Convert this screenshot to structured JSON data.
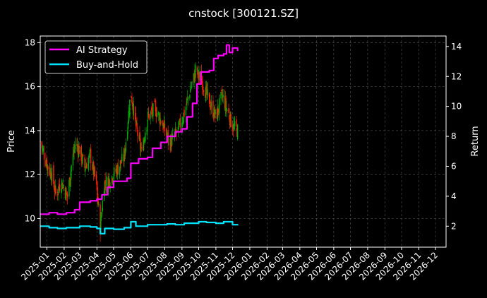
{
  "chart_data": {
    "type": "line",
    "title": "cnstock [300121.SZ]",
    "ylabel_left": "Price",
    "ylabel_right": "Return",
    "x_ticks": [
      "2025-01",
      "2025-02",
      "2025-03",
      "2025-04",
      "2025-05",
      "2025-06",
      "2025-07",
      "2025-08",
      "2025-09",
      "2025-10",
      "2025-11",
      "2025-12",
      "2026-01",
      "2026-02",
      "2026-03",
      "2026-04",
      "2026-05",
      "2026-06",
      "2026-07",
      "2026-08",
      "2026-09",
      "2026-10",
      "2026-11",
      "2026-12"
    ],
    "x_range": [
      "2024-12-20",
      "2026-12-20"
    ],
    "ylim_left": [
      8.7,
      18.3
    ],
    "ylim_right": [
      0.6,
      14.7
    ],
    "yticks_left": [
      "10",
      "12",
      "14",
      "16",
      "18"
    ],
    "yticks_right": [
      "2",
      "4",
      "6",
      "8",
      "10",
      "12",
      "14"
    ],
    "grid": true,
    "legend_position": "top-left",
    "colors": {
      "up": "#00aa00",
      "down": "#ff2200",
      "strategy": "#ff00ff",
      "buyhold": "#00e5ff",
      "background": "#000000",
      "grid": "#555555"
    },
    "price_path": [
      [
        "2024-12-20",
        13.5
      ],
      [
        "2025-01-02",
        12.4
      ],
      [
        "2025-01-10",
        12.0
      ],
      [
        "2025-01-17",
        11.1
      ],
      [
        "2025-01-27",
        11.7
      ],
      [
        "2025-02-07",
        11.0
      ],
      [
        "2025-02-14",
        12.4
      ],
      [
        "2025-02-21",
        13.4
      ],
      [
        "2025-03-01",
        13.1
      ],
      [
        "2025-03-10",
        12.3
      ],
      [
        "2025-03-20",
        12.9
      ],
      [
        "2025-03-31",
        11.5
      ],
      [
        "2025-04-07",
        9.6
      ],
      [
        "2025-04-14",
        11.6
      ],
      [
        "2025-04-25",
        11.8
      ],
      [
        "2025-05-09",
        12.3
      ],
      [
        "2025-05-20",
        12.8
      ],
      [
        "2025-06-01",
        15.8
      ],
      [
        "2025-06-10",
        14.2
      ],
      [
        "2025-06-20",
        13.0
      ],
      [
        "2025-07-01",
        14.6
      ],
      [
        "2025-07-15",
        15.0
      ],
      [
        "2025-07-28",
        14.3
      ],
      [
        "2025-08-10",
        13.4
      ],
      [
        "2025-08-25",
        14.0
      ],
      [
        "2025-09-05",
        14.8
      ],
      [
        "2025-09-15",
        15.8
      ],
      [
        "2025-09-26",
        16.7
      ],
      [
        "2025-10-08",
        16.2
      ],
      [
        "2025-10-20",
        15.3
      ],
      [
        "2025-11-01",
        14.6
      ],
      [
        "2025-11-12",
        15.6
      ],
      [
        "2025-11-22",
        14.9
      ],
      [
        "2025-12-01",
        14.2
      ],
      [
        "2025-12-10",
        14.0
      ]
    ],
    "series": [
      {
        "name": "AI Strategy",
        "points": [
          [
            "2024-12-20",
            2.8
          ],
          [
            "2025-01-05",
            2.9
          ],
          [
            "2025-01-20",
            2.8
          ],
          [
            "2025-02-05",
            2.9
          ],
          [
            "2025-02-20",
            3.1
          ],
          [
            "2025-03-01",
            3.6
          ],
          [
            "2025-03-20",
            3.7
          ],
          [
            "2025-04-01",
            3.8
          ],
          [
            "2025-04-10",
            4.1
          ],
          [
            "2025-04-20",
            4.6
          ],
          [
            "2025-05-01",
            5.0
          ],
          [
            "2025-05-15",
            5.0
          ],
          [
            "2025-05-25",
            5.2
          ],
          [
            "2025-06-01",
            6.2
          ],
          [
            "2025-06-15",
            6.5
          ],
          [
            "2025-07-01",
            6.6
          ],
          [
            "2025-07-10",
            7.2
          ],
          [
            "2025-07-25",
            7.6
          ],
          [
            "2025-08-05",
            8.0
          ],
          [
            "2025-08-20",
            8.3
          ],
          [
            "2025-09-01",
            8.5
          ],
          [
            "2025-09-10",
            9.3
          ],
          [
            "2025-09-20",
            10.2
          ],
          [
            "2025-09-28",
            11.5
          ],
          [
            "2025-10-05",
            12.3
          ],
          [
            "2025-10-20",
            12.4
          ],
          [
            "2025-10-28",
            13.2
          ],
          [
            "2025-11-05",
            13.4
          ],
          [
            "2025-11-15",
            13.5
          ],
          [
            "2025-11-20",
            14.1
          ],
          [
            "2025-11-25",
            13.6
          ],
          [
            "2025-12-01",
            13.9
          ],
          [
            "2025-12-10",
            13.7
          ]
        ]
      },
      {
        "name": "Buy-and-Hold",
        "points": [
          [
            "2024-12-20",
            2.0
          ],
          [
            "2025-01-05",
            1.9
          ],
          [
            "2025-01-20",
            1.85
          ],
          [
            "2025-02-05",
            1.9
          ],
          [
            "2025-02-20",
            1.9
          ],
          [
            "2025-03-01",
            2.0
          ],
          [
            "2025-03-20",
            1.95
          ],
          [
            "2025-04-01",
            1.85
          ],
          [
            "2025-04-07",
            1.5
          ],
          [
            "2025-04-15",
            1.85
          ],
          [
            "2025-05-01",
            1.8
          ],
          [
            "2025-05-20",
            1.9
          ],
          [
            "2025-06-01",
            2.3
          ],
          [
            "2025-06-10",
            2.0
          ],
          [
            "2025-07-01",
            2.1
          ],
          [
            "2025-07-20",
            2.1
          ],
          [
            "2025-08-05",
            2.15
          ],
          [
            "2025-08-20",
            2.1
          ],
          [
            "2025-09-05",
            2.2
          ],
          [
            "2025-09-20",
            2.2
          ],
          [
            "2025-10-01",
            2.3
          ],
          [
            "2025-10-15",
            2.25
          ],
          [
            "2025-11-01",
            2.2
          ],
          [
            "2025-11-15",
            2.3
          ],
          [
            "2025-12-01",
            2.1
          ],
          [
            "2025-12-10",
            2.05
          ]
        ]
      }
    ]
  }
}
